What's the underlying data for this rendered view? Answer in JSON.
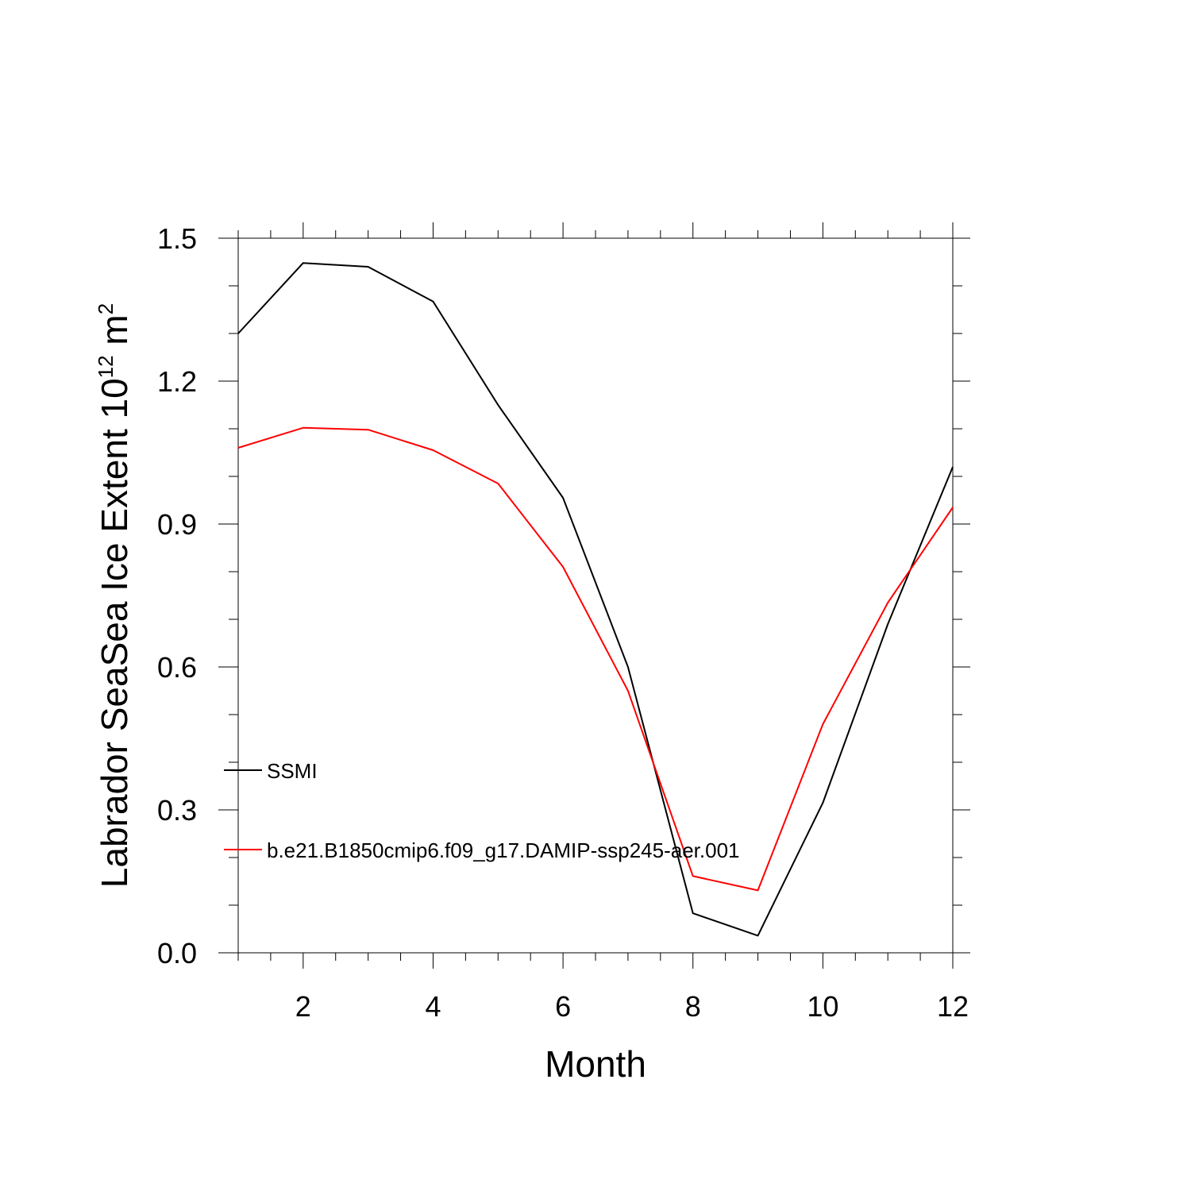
{
  "chart_data": {
    "type": "line",
    "title": "",
    "xlabel": "Month",
    "ylabel_text": "Labrador SeaSea Ice Extent 10",
    "ylabel_exponent": "12",
    "ylabel_unit": " m",
    "ylabel_unit_exponent": "2",
    "xlim": [
      1,
      12
    ],
    "ylim": [
      0.0,
      1.5
    ],
    "xticks": [
      2,
      4,
      6,
      8,
      10,
      12
    ],
    "xtick_labels": [
      "2",
      "4",
      "6",
      "8",
      "10",
      "12"
    ],
    "yticks": [
      0.0,
      0.3,
      0.6,
      0.9,
      1.2,
      1.5
    ],
    "ytick_labels": [
      "0.0",
      "0.3",
      "0.6",
      "0.9",
      "1.2",
      "1.5"
    ],
    "grid": false,
    "legend_placement": "lower-left inside",
    "x": [
      1,
      2,
      3,
      4,
      5,
      6,
      7,
      8,
      9,
      10,
      11,
      12
    ],
    "series": [
      {
        "name": "SSMI",
        "color": "#000000",
        "values": [
          1.3,
          1.448,
          1.44,
          1.367,
          1.15,
          0.955,
          0.6,
          0.083,
          0.036,
          0.315,
          0.69,
          1.02
        ]
      },
      {
        "name": "b.e21.B1850cmip6.f09_g17.DAMIP-ssp245-aer.001",
        "color": "#ff0000",
        "values": [
          1.06,
          1.102,
          1.098,
          1.055,
          0.985,
          0.81,
          0.55,
          0.161,
          0.131,
          0.48,
          0.735,
          0.935
        ]
      }
    ]
  }
}
